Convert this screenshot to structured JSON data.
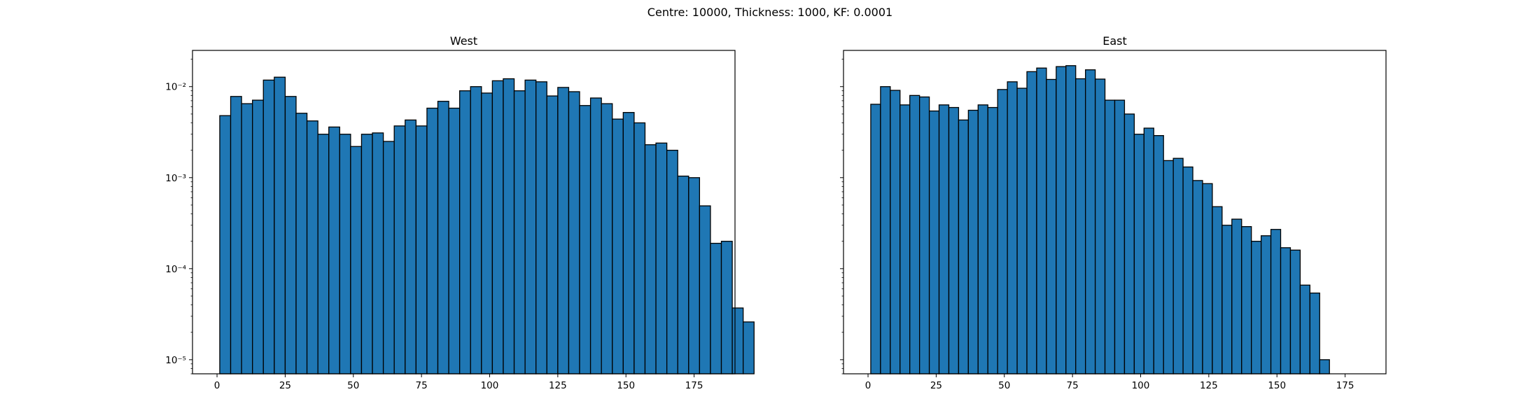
{
  "figure": {
    "suptitle": "Centre: 10000, Thickness: 1000, KF: 0.0001"
  },
  "chart_data": [
    {
      "type": "bar",
      "title": "West",
      "xlabel": "",
      "ylabel": "",
      "yscale": "log",
      "xlim": [
        -9,
        190
      ],
      "ylim": [
        7e-06,
        0.025
      ],
      "x_ticks": [
        0,
        25,
        50,
        75,
        100,
        125,
        150,
        175
      ],
      "y_ticks": [
        {
          "value": 0.01,
          "label": "10⁻²"
        },
        {
          "value": 0.001,
          "label": "10⁻³"
        },
        {
          "value": 0.0001,
          "label": "10⁻⁴"
        },
        {
          "value": 1e-05,
          "label": "10⁻⁵"
        }
      ],
      "bar_color": "#1f77b4",
      "edge_color": "#000000",
      "bin_start": 1,
      "bin_width": 4,
      "values": [
        0.0048,
        0.0078,
        0.0065,
        0.0071,
        0.0118,
        0.0127,
        0.0078,
        0.0051,
        0.0042,
        0.003,
        0.0036,
        0.003,
        0.0022,
        0.003,
        0.0031,
        0.0025,
        0.0037,
        0.0043,
        0.0037,
        0.0058,
        0.0069,
        0.0058,
        0.009,
        0.01,
        0.0085,
        0.0116,
        0.0122,
        0.009,
        0.0118,
        0.0113,
        0.0079,
        0.0098,
        0.0088,
        0.0062,
        0.0075,
        0.0065,
        0.0044,
        0.0052,
        0.004,
        0.0023,
        0.0024,
        0.002,
        0.00104,
        0.001,
        0.00049,
        0.00019,
        0.0002,
        3.7e-05,
        2.6e-05
      ]
    },
    {
      "type": "bar",
      "title": "East",
      "xlabel": "",
      "ylabel": "",
      "yscale": "log",
      "xlim": [
        -9,
        190
      ],
      "ylim": [
        7e-06,
        0.025
      ],
      "x_ticks": [
        0,
        25,
        50,
        75,
        100,
        125,
        150,
        175
      ],
      "y_ticks": [
        {
          "value": 0.01,
          "label": ""
        },
        {
          "value": 0.001,
          "label": ""
        },
        {
          "value": 0.0001,
          "label": ""
        },
        {
          "value": 1e-05,
          "label": ""
        }
      ],
      "bar_color": "#1f77b4",
      "edge_color": "#000000",
      "bin_start": 1,
      "bin_width": 3.58,
      "values": [
        0.0064,
        0.01,
        0.0091,
        0.0063,
        0.008,
        0.0077,
        0.0054,
        0.0063,
        0.0059,
        0.0043,
        0.0055,
        0.0063,
        0.0059,
        0.0093,
        0.0113,
        0.0096,
        0.0146,
        0.016,
        0.012,
        0.0166,
        0.017,
        0.0122,
        0.0153,
        0.0121,
        0.0071,
        0.0071,
        0.005,
        0.003,
        0.0035,
        0.0029,
        0.00154,
        0.00163,
        0.00131,
        0.00093,
        0.00086,
        0.00048,
        0.0003,
        0.00035,
        0.00029,
        0.0002,
        0.00023,
        0.00027,
        0.00017,
        0.00016,
        6.6e-05,
        5.4e-05,
        1e-05
      ]
    }
  ]
}
